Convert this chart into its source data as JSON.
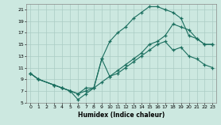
{
  "xlabel": "Humidex (Indice chaleur)",
  "bg_color": "#cce8e0",
  "grid_color": "#aaccc4",
  "line_color": "#1a6e5e",
  "xlim": [
    -0.5,
    23.5
  ],
  "ylim": [
    5,
    22
  ],
  "yticks": [
    5,
    7,
    9,
    11,
    13,
    15,
    17,
    19,
    21
  ],
  "xticks": [
    0,
    1,
    2,
    3,
    4,
    5,
    6,
    7,
    8,
    9,
    10,
    11,
    12,
    13,
    14,
    15,
    16,
    17,
    18,
    19,
    20,
    21,
    22,
    23
  ],
  "line1_x": [
    0,
    1,
    3,
    4,
    5,
    6,
    7,
    8,
    9,
    10,
    11,
    12,
    13,
    14,
    15,
    16,
    17,
    18,
    19,
    20,
    21,
    22,
    23
  ],
  "line1_y": [
    10,
    9,
    8,
    7.5,
    7,
    6.5,
    7.5,
    7.5,
    12.5,
    15.5,
    17.0,
    18.0,
    19.5,
    20.5,
    21.5,
    21.5,
    21.0,
    20.5,
    19.5,
    16.5,
    16.0,
    15.0,
    15.0
  ],
  "line2_x": [
    0,
    1,
    3,
    4,
    5,
    6,
    7,
    8,
    9,
    10,
    11,
    12,
    13,
    14,
    15,
    16,
    17,
    18,
    19,
    20,
    21,
    22,
    23
  ],
  "line2_y": [
    10,
    9,
    8,
    7.5,
    7,
    6.5,
    7.0,
    7.5,
    8.5,
    9.5,
    10.5,
    11.5,
    12.5,
    13.5,
    15.0,
    15.5,
    16.5,
    18.5,
    18.0,
    17.5,
    16.0,
    15.0,
    15.0
  ],
  "line3_x": [
    0,
    1,
    3,
    4,
    5,
    6,
    7,
    8,
    9,
    10,
    11,
    12,
    13,
    14,
    15,
    16,
    17,
    18,
    19,
    20,
    21,
    22,
    23
  ],
  "line3_y": [
    10,
    9,
    8,
    7.5,
    7,
    5.5,
    6.5,
    7.5,
    12.5,
    9.5,
    10.0,
    11.0,
    12.0,
    13.0,
    14.0,
    15.0,
    15.5,
    14.0,
    14.5,
    13.0,
    12.5,
    11.5,
    11.0
  ]
}
